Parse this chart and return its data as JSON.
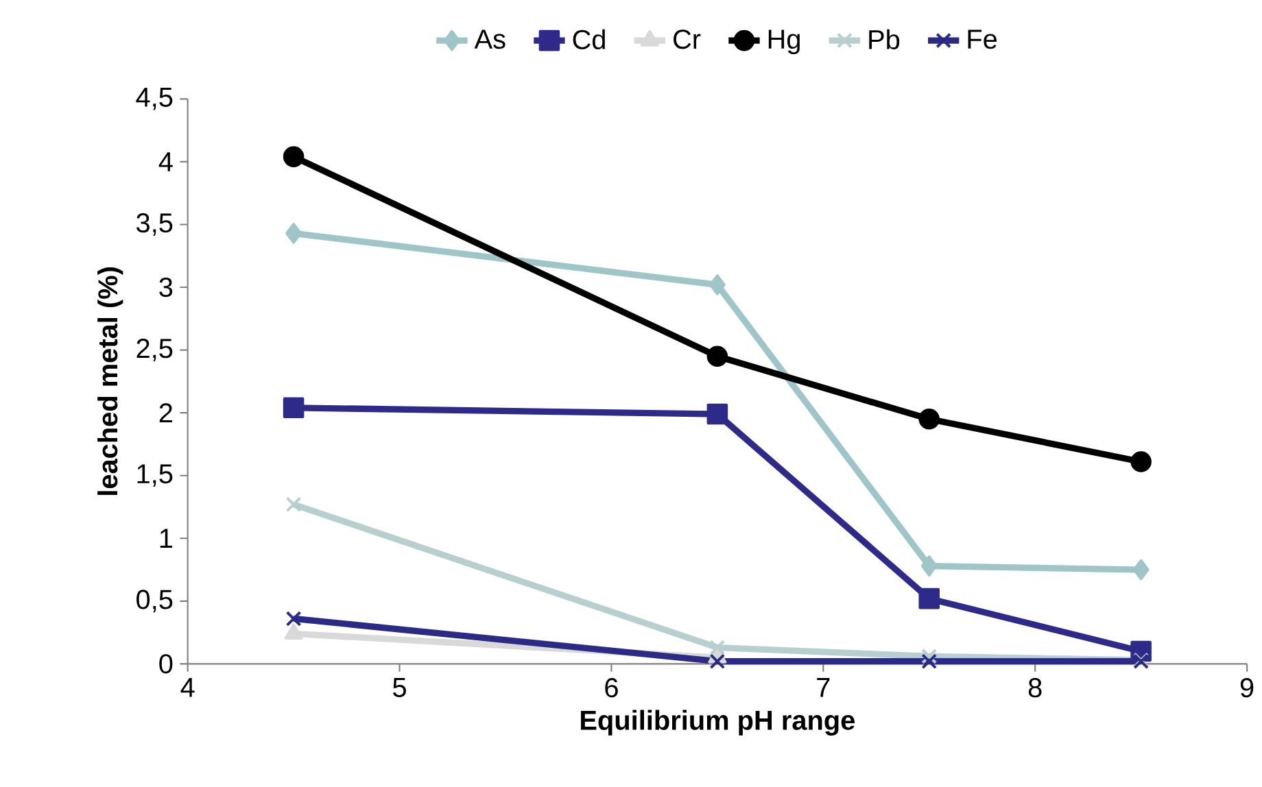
{
  "chart_data": {
    "type": "line",
    "xlabel": "Equilibrium pH range",
    "ylabel": "leached metal (%)",
    "x": [
      4.5,
      6.5,
      7.5,
      8.5
    ],
    "series": [
      {
        "name": "As",
        "color": "#9fc5c8",
        "marker": "diamond",
        "values": [
          3.43,
          3.02,
          0.78,
          0.75
        ]
      },
      {
        "name": "Cd",
        "color": "#2e2a8a",
        "marker": "square",
        "values": [
          2.04,
          1.99,
          0.52,
          0.1
        ]
      },
      {
        "name": "Cr",
        "color": "#d9d9d9",
        "marker": "triangle",
        "values": [
          0.24,
          0.05,
          null,
          null
        ]
      },
      {
        "name": "Hg",
        "color": "#000000",
        "marker": "circle",
        "values": [
          4.04,
          2.45,
          1.95,
          1.61
        ]
      },
      {
        "name": "Pb",
        "color": "#b8cfd0",
        "marker": "cross",
        "values": [
          1.27,
          0.13,
          0.06,
          0.03
        ]
      },
      {
        "name": "Fe",
        "color": "#2b2a85",
        "marker": "cross",
        "values": [
          0.36,
          0.02,
          0.02,
          0.02
        ]
      }
    ],
    "xlim": [
      4,
      9
    ],
    "xticks": [
      4,
      5,
      6,
      7,
      8,
      9
    ],
    "ylim": [
      0,
      4.5
    ],
    "yticks": [
      0,
      {
        "value": 0.5,
        "label": "0,5"
      },
      1,
      {
        "value": 1.5,
        "label": "1,5"
      },
      2,
      {
        "value": 2.5,
        "label": "2,5"
      },
      3,
      {
        "value": 3.5,
        "label": "3,5"
      },
      4,
      {
        "value": 4.5,
        "label": "4,5"
      }
    ],
    "grid": false,
    "legend": "top",
    "line_style": "solid"
  }
}
